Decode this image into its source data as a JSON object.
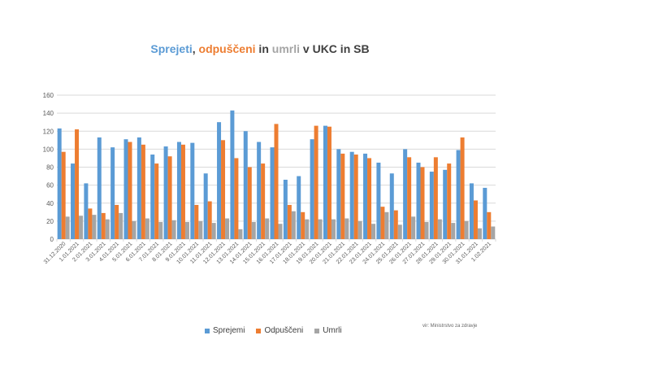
{
  "chart_data": {
    "type": "bar",
    "title_parts": [
      {
        "text": "Sprejeti",
        "color": "#5B9BD5"
      },
      {
        "text": ", ",
        "color": "#404040"
      },
      {
        "text": "odpuščeni",
        "color": "#ED7D31"
      },
      {
        "text": " in ",
        "color": "#404040"
      },
      {
        "text": "umrli",
        "color": "#A5A5A5"
      },
      {
        "text": " v UKC in SB",
        "color": "#404040"
      }
    ],
    "categories": [
      "31.12.2020",
      "1.01.2021",
      "2.01.2021",
      "3.01.2021",
      "4.01.2021",
      "5.01.2021",
      "6.01.2021",
      "7.01.2021",
      "8.01.2021",
      "9.01.2021",
      "10.01.2021",
      "11.01.2021",
      "12.01.2021",
      "13.01.2021",
      "14.01.2021",
      "15.01.2021",
      "16.01.2021",
      "17.01.2021",
      "18.01.2021",
      "19.01.2021",
      "20.01.2021",
      "21.01.2021",
      "22.01.2021",
      "23.01.2021",
      "24.01.2021",
      "25.01.2021",
      "26.01.2021",
      "27.01.2021",
      "28.01.2021",
      "29.01.2021",
      "30.01.2021",
      "31.01.2021",
      "1.02.2021"
    ],
    "series": [
      {
        "name": "Sprejemi",
        "color": "#5B9BD5",
        "values": [
          123,
          84,
          62,
          113,
          102,
          111,
          113,
          94,
          103,
          108,
          107,
          73,
          130,
          143,
          120,
          108,
          102,
          66,
          70,
          111,
          126,
          100,
          97,
          95,
          85,
          73,
          100,
          85,
          75,
          77,
          99,
          62,
          57
        ]
      },
      {
        "name": "Odpuščeni",
        "color": "#ED7D31",
        "values": [
          97,
          122,
          34,
          29,
          38,
          108,
          105,
          84,
          92,
          105,
          38,
          42,
          110,
          90,
          80,
          84,
          128,
          38,
          30,
          126,
          125,
          95,
          94,
          90,
          36,
          32,
          91,
          80,
          91,
          84,
          113,
          43,
          30
        ]
      },
      {
        "name": "Umrli",
        "color": "#A5A5A5",
        "values": [
          25,
          26,
          27,
          22,
          29,
          20,
          23,
          19,
          21,
          19,
          20,
          18,
          23,
          11,
          19,
          23,
          17,
          31,
          22,
          22,
          22,
          23,
          20,
          17,
          30,
          16,
          25,
          19,
          22,
          18,
          20,
          12,
          14
        ]
      }
    ],
    "yticks": [
      0,
      20,
      40,
      60,
      80,
      100,
      120,
      140,
      160
    ],
    "ylim": [
      0,
      160
    ],
    "grid": true,
    "legend": "bottom",
    "source": "vir: Ministrstvo za zdravje"
  }
}
